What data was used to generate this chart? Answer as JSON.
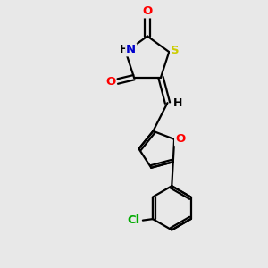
{
  "bg_color": "#e8e8e8",
  "bond_color": "#000000",
  "atom_colors": {
    "O": "#ff0000",
    "N": "#0000cd",
    "S": "#cccc00",
    "Cl": "#00aa00",
    "H": "#000000"
  },
  "font_size": 9.5,
  "bond_width": 1.6,
  "figsize": [
    3.0,
    3.0
  ],
  "dpi": 100,
  "xlim": [
    0,
    10
  ],
  "ylim": [
    0,
    10
  ]
}
